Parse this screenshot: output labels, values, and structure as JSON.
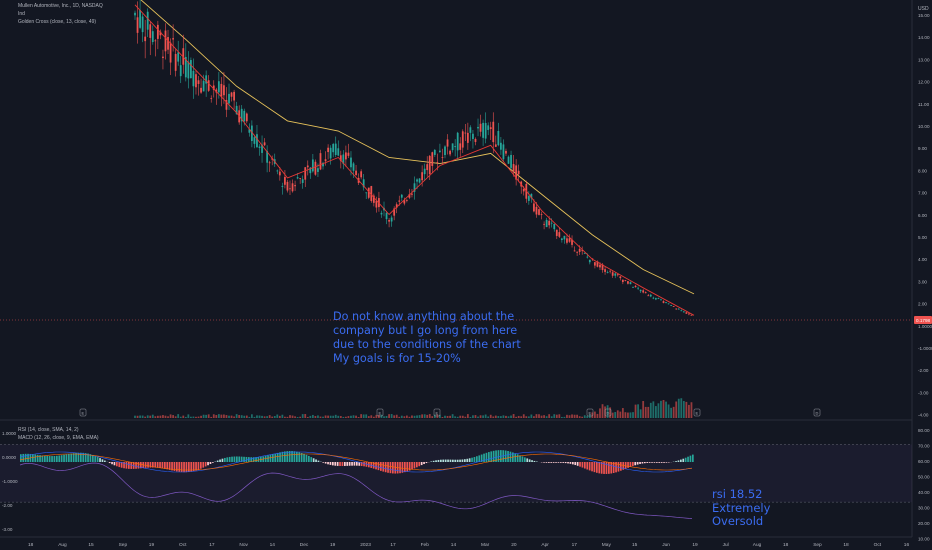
{
  "header": {
    "symbol_line": "Mullen Automotive, Inc., 1D, NASDAQ",
    "indicator_1": "Ind",
    "indicator_2": "Golden Cross (close, 13, close, 49)",
    "currency": "USD"
  },
  "price_axis": {
    "labels": [
      "15.00",
      "14.00",
      "13.00",
      "12.00",
      "11.00",
      "10.00",
      "9.00",
      "8.00",
      "7.00",
      "6.00",
      "5.00",
      "4.00",
      "3.00",
      "2.00",
      "1.0000",
      "-1.0000",
      "-2.00",
      "-3.00",
      "-4.00"
    ],
    "last_price_badge": "0.1798"
  },
  "lower_pane": {
    "legend_rsi": "RSI (14, close, SMA, 14, 2)",
    "legend_macd": "MACD (12, 26, close, 9, EMA, EMA)",
    "left_labels": [
      "1.0000",
      "0.0000",
      "-1.0000",
      "-2.00",
      "-3.00"
    ],
    "right_labels": [
      "80.00",
      "70.00",
      "60.00",
      "50.00",
      "40.00",
      "30.00",
      "20.00",
      "10.00"
    ],
    "rsi_bands": {
      "upper": 70,
      "lower": 30
    }
  },
  "time_axis": {
    "labels": [
      "18",
      "Aug",
      "15",
      "Sep",
      "19",
      "Oct",
      "17",
      "Nov",
      "14",
      "Dec",
      "19",
      "2023",
      "17",
      "Feb",
      "14",
      "Mar",
      "20",
      "Apr",
      "17",
      "May",
      "15",
      "Jun",
      "19",
      "Jul",
      "Aug",
      "18",
      "Sep",
      "18",
      "Oct",
      "16"
    ]
  },
  "annotations": {
    "main_note": "Do not know anything about the\ncompany but I go long from here\ndue to the conditions of the chart\nMy goals is for 15-20%",
    "rsi_note": "rsi 18.52\nExtremely\nOversold"
  },
  "event_markers": [
    "E",
    "E",
    "E",
    "E",
    "D",
    "E",
    "D"
  ],
  "colors": {
    "background": "#131722",
    "up": "#26a69a",
    "down": "#ef5350",
    "ema_fast": "#e53935",
    "ema_slow": "#e6c15a",
    "rsi_line": "#7e57c2",
    "macd_line": "#2962ff",
    "signal_line": "#ff6d00",
    "annotation": "#3b6cf0"
  },
  "chart_data": {
    "type": "candlestick",
    "title": "Mullen Automotive, Inc., 1D, NASDAQ",
    "x": [
      "Jul 2022",
      "Aug 2022",
      "Sep 2022",
      "Oct 2022",
      "Nov 2022",
      "Dec 2022",
      "Jan 2023",
      "Feb 2023",
      "Mar 2023",
      "Apr 2023",
      "May 2023",
      "Jun 2023"
    ],
    "close_approx": [
      15.0,
      12.5,
      10.5,
      6.5,
      8.5,
      5.0,
      8.3,
      9.5,
      5.0,
      2.9,
      1.4,
      0.18
    ],
    "ema_13_approx": [
      15.5,
      12.8,
      10.2,
      7.0,
      8.0,
      5.2,
      7.6,
      8.6,
      5.4,
      3.0,
      1.6,
      0.25
    ],
    "ema_49_approx": [
      16.0,
      13.8,
      11.5,
      9.8,
      9.3,
      8.0,
      7.7,
      8.2,
      6.2,
      4.2,
      2.5,
      1.3
    ],
    "rsi_14_last": 18.52,
    "rsi_range": [
      0,
      100
    ],
    "macd_range": [
      -3,
      1
    ]
  }
}
